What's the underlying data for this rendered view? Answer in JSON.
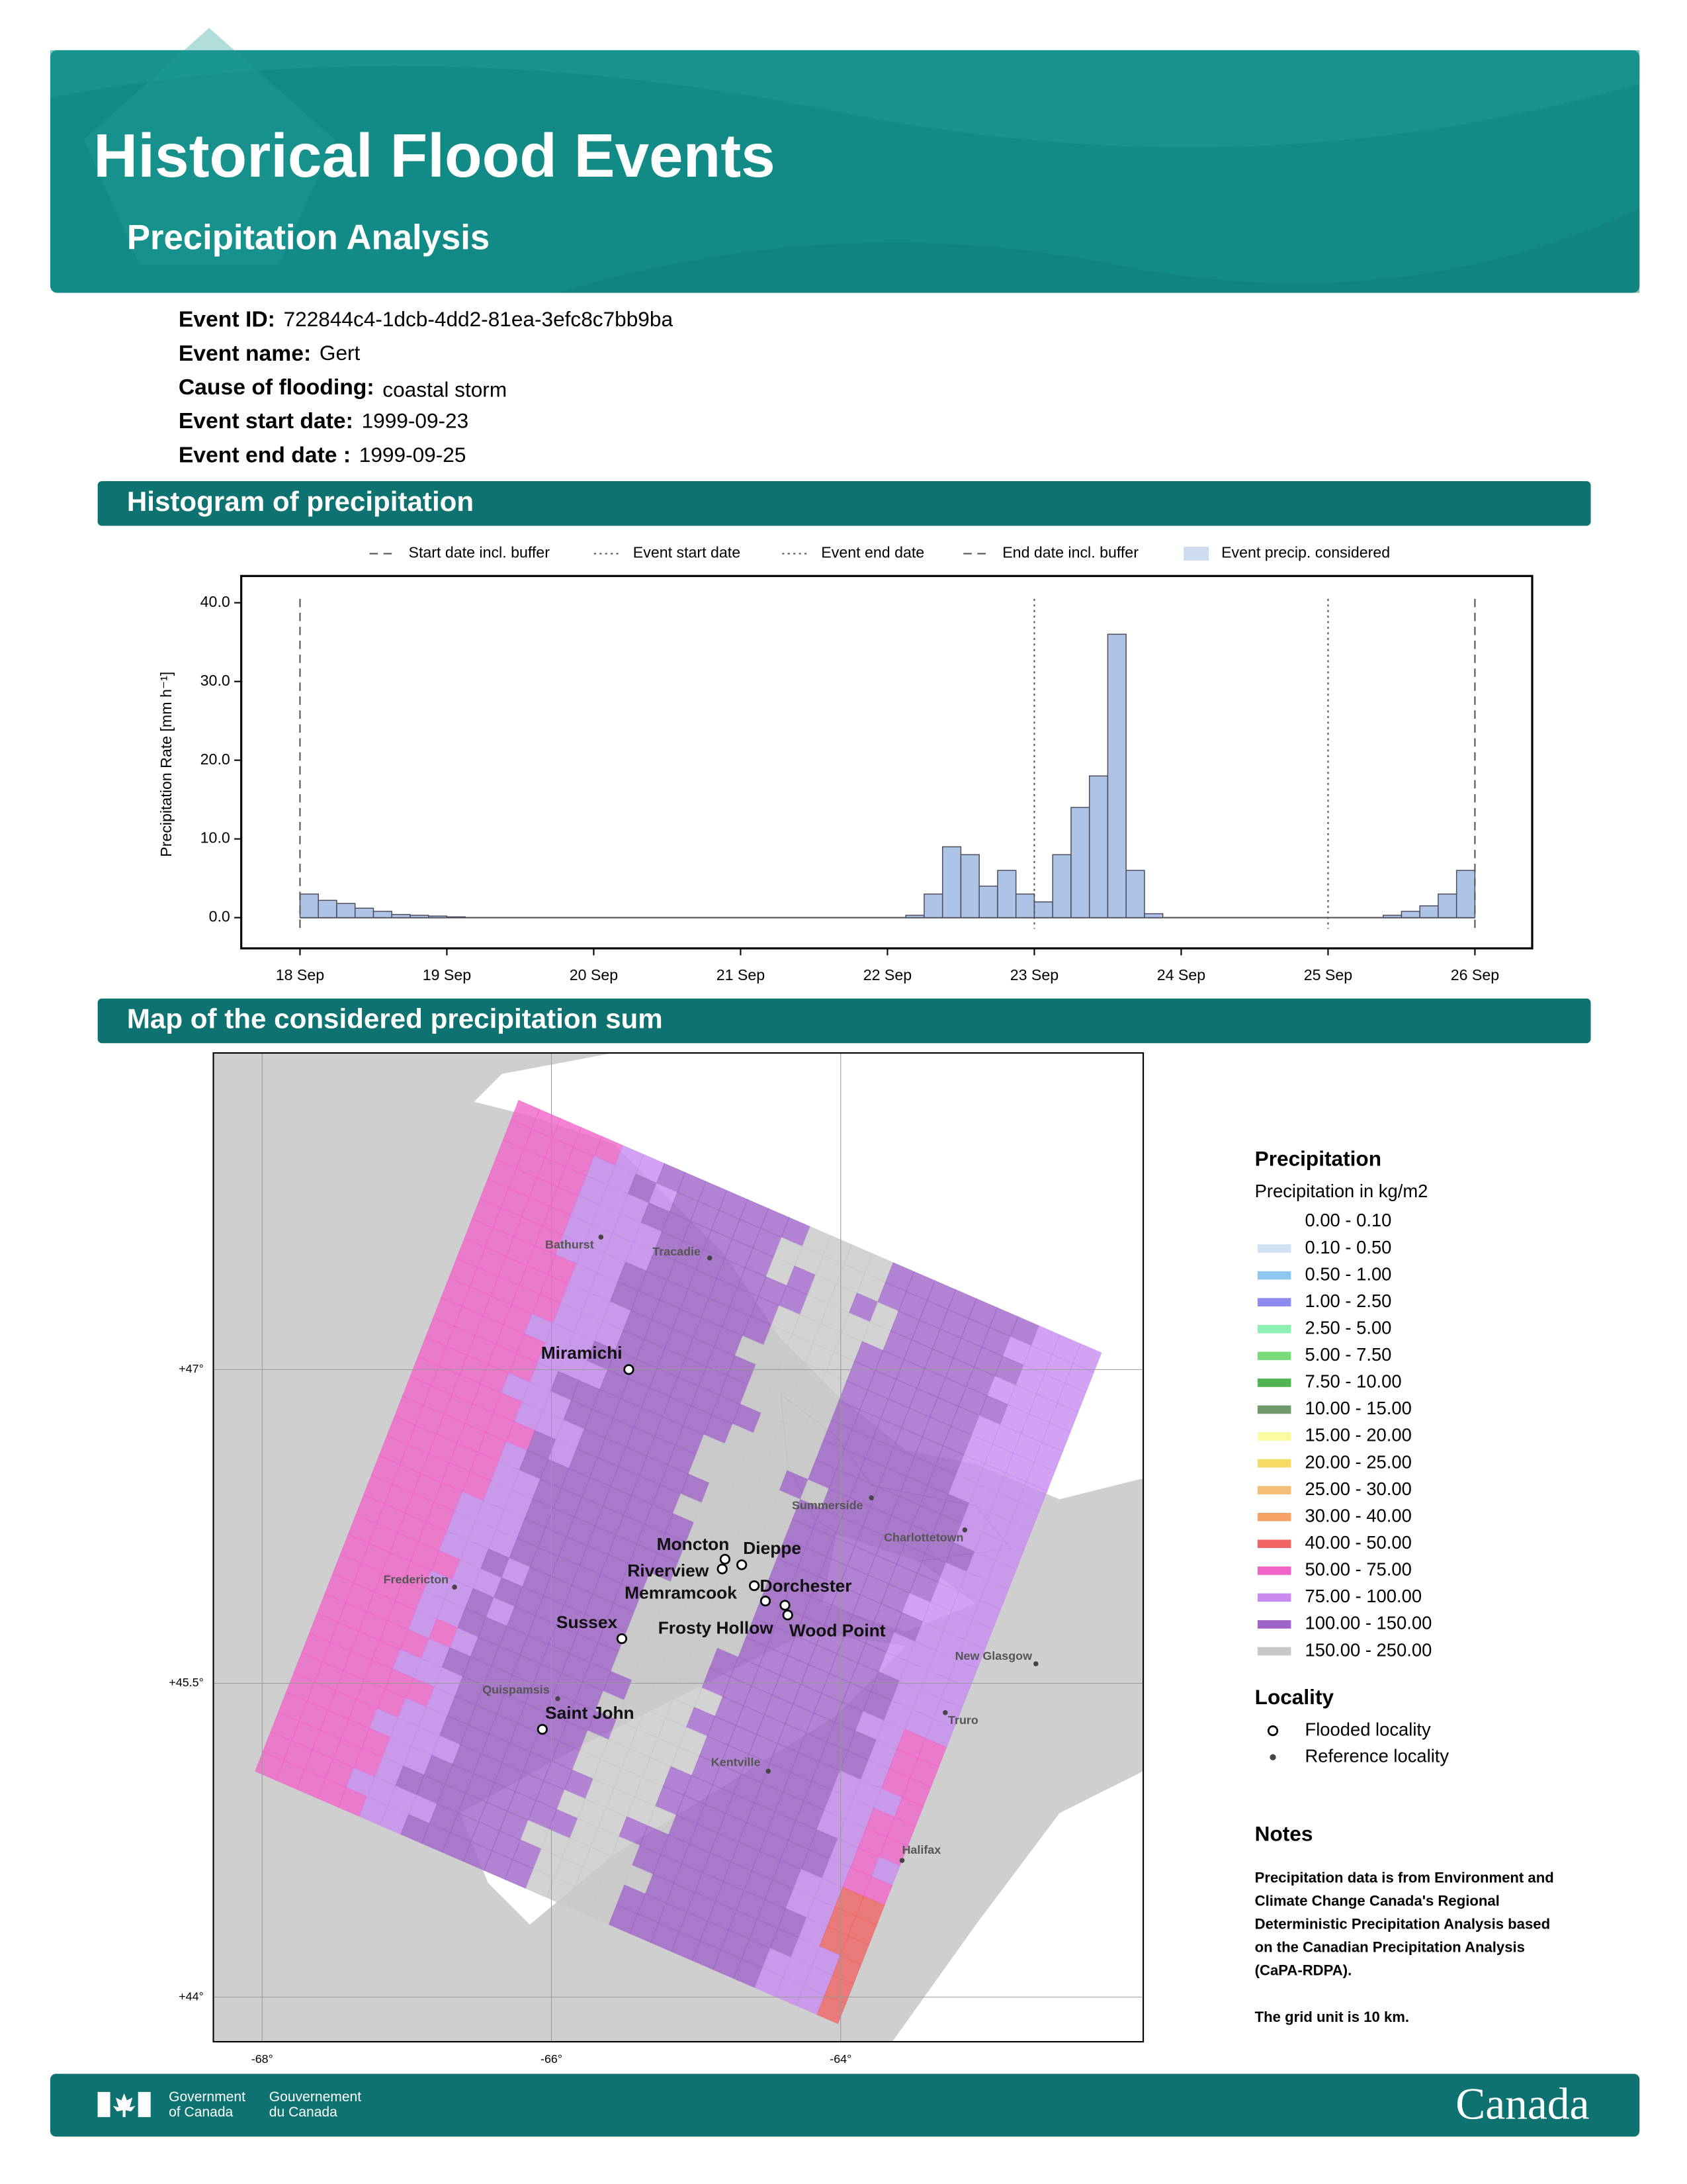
{
  "header": {
    "title": "Historical Flood Events",
    "subtitle": "Precipitation Analysis"
  },
  "event_info": [
    {
      "label": "Event ID:",
      "value": "722844c4-1dcb-4dd2-81ea-3efc8c7bb9ba"
    },
    {
      "label": "Event name:",
      "value": "Gert"
    },
    {
      "label": "Cause of flooding:",
      "value": "coastal storm"
    },
    {
      "label": "Event start date:",
      "value": "1999-09-23"
    },
    {
      "label": "Event end date :",
      "value": "1999-09-25"
    }
  ],
  "chart_data": {
    "type": "histogram",
    "title": "Histogram of precipitation",
    "ylabel": "Precipitation Rate [mm h⁻¹]",
    "bins": [
      18,
      18.125,
      18.25,
      18.375,
      18.5,
      18.625,
      18.75,
      18.875,
      19,
      19.125,
      19.25,
      19.375,
      19.5,
      19.625,
      19.75,
      19.875,
      20,
      20.125,
      20.25,
      20.375,
      20.5,
      20.625,
      20.75,
      20.875,
      21,
      21.125,
      21.25,
      21.375,
      21.5,
      21.625,
      21.75,
      21.875,
      22,
      22.125,
      22.25,
      22.375,
      22.5,
      22.625,
      22.75,
      22.875,
      23,
      23.125,
      23.25,
      23.375,
      23.5,
      23.625,
      23.75,
      23.875,
      24,
      24.125,
      24.25,
      24.375,
      24.5,
      24.625,
      24.75,
      24.875,
      25,
      25.125,
      25.25,
      25.375,
      25.5,
      25.625,
      25.75,
      25.875,
      26
    ],
    "series": [
      {
        "name": "Event precip. considered",
        "color": "#aec4e6",
        "values": [
          3,
          2.2,
          1.8,
          1.2,
          0.8,
          0.4,
          0.3,
          0.2,
          0.1,
          0,
          0,
          0,
          0,
          0,
          0,
          0,
          0,
          0,
          0,
          0,
          0,
          0,
          0,
          0,
          0,
          0,
          0,
          0,
          0,
          0,
          0,
          0,
          0,
          0.3,
          3,
          9,
          8,
          4,
          6,
          3,
          2,
          8,
          14,
          18,
          36,
          6,
          0.5,
          0,
          0,
          0,
          0,
          0,
          0,
          0,
          0,
          0,
          0,
          0,
          0,
          0.3,
          0.8,
          1.5,
          3,
          6
        ]
      }
    ],
    "vlines": [
      {
        "name": "Start date incl. buffer",
        "x": 18,
        "style": "dashed"
      },
      {
        "name": "Event start date",
        "x": 23,
        "style": "dotted"
      },
      {
        "name": "Event end date",
        "x": 25,
        "style": "dotted"
      },
      {
        "name": "End date incl. buffer",
        "x": 26,
        "style": "dashed"
      }
    ],
    "xlim": [
      17.6,
      26.39
    ],
    "ylim": [
      -3.9,
      43.4
    ],
    "xticks": [
      {
        "value": 18,
        "label": "18 Sep"
      },
      {
        "value": 19,
        "label": "19 Sep"
      },
      {
        "value": 20,
        "label": "20 Sep"
      },
      {
        "value": 21,
        "label": "21 Sep"
      },
      {
        "value": 22,
        "label": "22 Sep"
      },
      {
        "value": 23,
        "label": "23 Sep"
      },
      {
        "value": 24,
        "label": "24 Sep"
      },
      {
        "value": 25,
        "label": "25 Sep"
      },
      {
        "value": 26,
        "label": "26 Sep"
      }
    ],
    "yticks": [
      {
        "value": 0,
        "label": "0.0"
      },
      {
        "value": 10,
        "label": "10.0"
      },
      {
        "value": 20,
        "label": "20.0"
      },
      {
        "value": 30,
        "label": "30.0"
      },
      {
        "value": 40,
        "label": "40.0"
      }
    ]
  },
  "map": {
    "title": "Map of the considered precipitation sum",
    "lat_ticks": [
      {
        "value": 47,
        "label": "+47°"
      },
      {
        "value": 45.5,
        "label": "+45.5°"
      },
      {
        "value": 44,
        "label": "+44°"
      }
    ],
    "lon_ticks": [
      {
        "value": -68,
        "label": "-68°"
      },
      {
        "value": -66,
        "label": "-66°"
      },
      {
        "value": -64,
        "label": "-64°"
      }
    ],
    "localities": [
      {
        "name": "Miramichi",
        "type": "flooded"
      },
      {
        "name": "Moncton",
        "type": "flooded"
      },
      {
        "name": "Dieppe",
        "type": "flooded"
      },
      {
        "name": "Riverview",
        "type": "flooded"
      },
      {
        "name": "Memramcook",
        "type": "flooded"
      },
      {
        "name": "Dorchester",
        "type": "flooded"
      },
      {
        "name": "Frosty Hollow",
        "type": "flooded"
      },
      {
        "name": "Wood Point",
        "type": "flooded"
      },
      {
        "name": "Sussex",
        "type": "flooded"
      },
      {
        "name": "Saint John",
        "type": "flooded"
      },
      {
        "name": "Bathurst",
        "type": "reference"
      },
      {
        "name": "Tracadie",
        "type": "reference"
      },
      {
        "name": "Summerside",
        "type": "reference"
      },
      {
        "name": "Charlottetown",
        "type": "reference"
      },
      {
        "name": "Fredericton",
        "type": "reference"
      },
      {
        "name": "New Glasgow",
        "type": "reference"
      },
      {
        "name": "Quispamsis",
        "type": "reference"
      },
      {
        "name": "Truro",
        "type": "reference"
      },
      {
        "name": "Kentville",
        "type": "reference"
      },
      {
        "name": "Halifax",
        "type": "reference"
      }
    ],
    "legend_title": "Precipitation",
    "legend_subtitle": "Precipitation in kg/m2",
    "classes": [
      {
        "label": "0.00 - 0.10"
      },
      {
        "label": "0.10 - 0.50",
        "color": "#cfe2f3"
      },
      {
        "label": "0.50 - 1.00",
        "color": "#8ec8f0"
      },
      {
        "label": "1.00 - 2.50",
        "color": "#8c8cf0"
      },
      {
        "label": "2.50 - 5.00",
        "color": "#8cf0b4"
      },
      {
        "label": "5.00 - 7.50",
        "color": "#78dc78"
      },
      {
        "label": "7.50 - 10.00",
        "color": "#50b450"
      },
      {
        "label": "10.00 - 15.00",
        "color": "#6e9a6e"
      },
      {
        "label": "15.00 - 20.00",
        "color": "#fafaa0"
      },
      {
        "label": "20.00 - 25.00",
        "color": "#f5dc64"
      },
      {
        "label": "25.00 - 30.00",
        "color": "#f5be78"
      },
      {
        "label": "30.00 - 40.00",
        "color": "#f5a064"
      },
      {
        "label": "40.00 - 50.00",
        "color": "#f06464"
      },
      {
        "label": "50.00 - 75.00",
        "color": "#f064c8"
      },
      {
        "label": "75.00 - 100.00",
        "color": "#c88cf0"
      },
      {
        "label": "100.00 - 150.00",
        "color": "#a064c8"
      },
      {
        "label": "150.00 - 250.00",
        "color": "#c8c8c8"
      }
    ],
    "locality_title": "Locality",
    "locality_legend": [
      "Flooded locality",
      "Reference locality"
    ]
  },
  "notes": {
    "title": "Notes",
    "lines": [
      "Precipitation data is from Environment and",
      "Climate Change Canada's Regional",
      "Deterministic Precipitation Analysis based",
      "on the Canadian Precipitation Analysis",
      "(CaPA-RDPA)."
    ],
    "grid_note": "The grid unit is 10 km."
  },
  "footer": {
    "gov_en": [
      "Government",
      "of Canada"
    ],
    "gov_fr": [
      "Gouvernement",
      "du Canada"
    ],
    "wordmark": "Canada"
  }
}
